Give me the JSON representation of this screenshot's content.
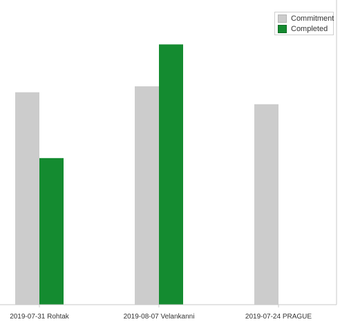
{
  "chart_data": {
    "type": "bar",
    "categories": [
      "2019-07-31 Rohtak",
      "2019-08-07 Velankanni",
      "2019-07-24 PRAGUE"
    ],
    "series": [
      {
        "name": "Commitment",
        "color": "#cccccc",
        "values": [
          7.1,
          7.3,
          6.7
        ]
      },
      {
        "name": "Completed",
        "color": "#148b30",
        "values": [
          4.9,
          8.7,
          0
        ]
      }
    ],
    "ylim": [
      0,
      10
    ],
    "legend_position": "top-right",
    "grid": false
  }
}
